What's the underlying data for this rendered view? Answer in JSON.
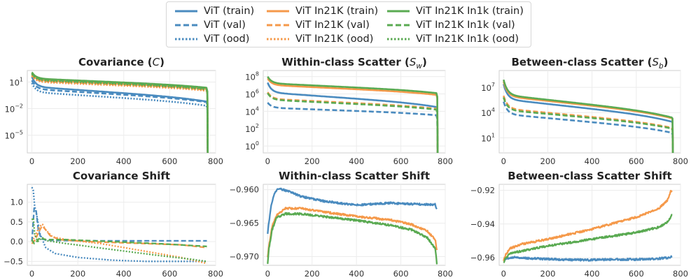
{
  "colors": {
    "vit": "#4a8bbf",
    "in21k": "#f5994a",
    "in1k": "#5aaa52"
  },
  "legend": [
    {
      "label": "ViT (train)",
      "color": "vit",
      "style": "solid"
    },
    {
      "label": "ViT (val)",
      "color": "vit",
      "style": "dashed"
    },
    {
      "label": "ViT (ood)",
      "color": "vit",
      "style": "dotted"
    },
    {
      "label": "ViT In21K (train)",
      "color": "in21k",
      "style": "solid"
    },
    {
      "label": "ViT In21K (val)",
      "color": "in21k",
      "style": "dashed"
    },
    {
      "label": "ViT In21K (ood)",
      "color": "in21k",
      "style": "dotted"
    },
    {
      "label": "ViT In21K In1k (train)",
      "color": "in1k",
      "style": "solid"
    },
    {
      "label": "ViT In21K In1k (val)",
      "color": "in1k",
      "style": "dashed"
    },
    {
      "label": "ViT In21K In1k (ood)",
      "color": "in1k",
      "style": "dotted"
    }
  ],
  "chart_data": [
    {
      "id": "cov",
      "type": "line",
      "title": "Covariance (C)",
      "yscale": "log",
      "xlim": [
        -20,
        800
      ],
      "xticks": [
        0,
        200,
        400,
        600,
        800
      ],
      "ylim_log10": [
        -7,
        2.3
      ],
      "yticks_log10": [
        1,
        -2,
        -5
      ],
      "ytick_labels": [
        "10^1",
        "10^-2",
        "10^-5"
      ],
      "drop_to": -8,
      "series": [
        {
          "name": "ViT (train)",
          "color": "vit",
          "style": "solid",
          "start": 1.6,
          "end": -0.9
        },
        {
          "name": "ViT (val)",
          "color": "vit",
          "style": "dashed",
          "start": 1.2,
          "end": -1.0
        },
        {
          "name": "ViT (ood)",
          "color": "vit",
          "style": "dotted",
          "start": 0.9,
          "end": -1.4
        },
        {
          "name": "ViT In21K (train)",
          "color": "in21k",
          "style": "solid",
          "start": 1.9,
          "end": 0.4
        },
        {
          "name": "ViT In21K (val)",
          "color": "in21k",
          "style": "dashed",
          "start": 1.8,
          "end": 0.3
        },
        {
          "name": "ViT In21K (ood)",
          "color": "in21k",
          "style": "dotted",
          "start": 1.7,
          "end": 0.2
        },
        {
          "name": "ViT In21K In1k (train)",
          "color": "in1k",
          "style": "solid",
          "start": 2.1,
          "end": 0.55
        },
        {
          "name": "ViT In21K In1k (val)",
          "color": "in1k",
          "style": "dashed",
          "start": 2.0,
          "end": 0.45
        },
        {
          "name": "ViT In21K In1k (ood)",
          "color": "in1k",
          "style": "dotted",
          "start": 1.9,
          "end": 0.35
        }
      ]
    },
    {
      "id": "sw",
      "type": "line",
      "title": "Within-class Scatter (S_w)",
      "yscale": "log",
      "xlim": [
        -20,
        800
      ],
      "xticks": [
        0,
        200,
        400,
        600,
        800
      ],
      "ylim_log10": [
        -0.8,
        8.7
      ],
      "yticks_log10": [
        8,
        6,
        4,
        2,
        0
      ],
      "ytick_labels": [
        "10^8",
        "10^6",
        "10^4",
        "10^2",
        "10^0"
      ],
      "drop_to": -1.5,
      "series": [
        {
          "name": "ViT (train)",
          "color": "vit",
          "style": "solid",
          "start": 7.3,
          "end": 4.8
        },
        {
          "name": "ViT (val)",
          "color": "vit",
          "style": "dashed",
          "start": 5.0,
          "end": 3.7
        },
        {
          "name": "ViT In21K (train)",
          "color": "in21k",
          "style": "solid",
          "start": 7.8,
          "end": 6.1
        },
        {
          "name": "ViT In21K (val)",
          "color": "in21k",
          "style": "dashed",
          "start": 6.2,
          "end": 4.5
        },
        {
          "name": "ViT In21K In1k (train)",
          "color": "in1k",
          "style": "solid",
          "start": 8.0,
          "end": 6.3
        },
        {
          "name": "ViT In21K In1k (val)",
          "color": "in1k",
          "style": "dashed",
          "start": 6.1,
          "end": 4.4
        }
      ]
    },
    {
      "id": "sb",
      "type": "line",
      "title": "Between-class Scatter (S_b)",
      "yscale": "log",
      "xlim": [
        -20,
        800
      ],
      "xticks": [
        0,
        200,
        400,
        600,
        800
      ],
      "ylim_log10": [
        -0.8,
        9.0
      ],
      "yticks_log10": [
        7,
        4,
        1
      ],
      "ytick_labels": [
        "10^7",
        "10^4",
        "10^1"
      ],
      "drop_to": -1.5,
      "series": [
        {
          "name": "ViT (train)",
          "color": "vit",
          "style": "solid",
          "start": 7.4,
          "end": 3.4
        },
        {
          "name": "ViT (val)",
          "color": "vit",
          "style": "dashed",
          "start": 5.3,
          "end": 2.0
        },
        {
          "name": "ViT In21K (train)",
          "color": "in21k",
          "style": "solid",
          "start": 7.7,
          "end": 3.8
        },
        {
          "name": "ViT In21K (val)",
          "color": "in21k",
          "style": "dashed",
          "start": 6.0,
          "end": 2.6
        },
        {
          "name": "ViT In21K In1k (train)",
          "color": "in1k",
          "style": "solid",
          "start": 7.9,
          "end": 3.9
        },
        {
          "name": "ViT In21K In1k (val)",
          "color": "in1k",
          "style": "dashed",
          "start": 5.8,
          "end": 2.5
        }
      ]
    },
    {
      "id": "covshift",
      "type": "line",
      "title": "Covariance Shift",
      "yscale": "linear",
      "xlim": [
        -20,
        800
      ],
      "xticks": [
        0,
        200,
        400,
        600,
        800
      ],
      "ylim": [
        -0.6,
        1.45
      ],
      "yticks": [
        1.0,
        0.5,
        0.0,
        -0.5
      ],
      "ytick_labels": [
        "1.0",
        "0.5",
        "0.0",
        "−0.5"
      ],
      "series": [
        {
          "name": "ViT (val)",
          "color": "vit",
          "style": "dashed",
          "points": [
            [
              0,
              0.0
            ],
            [
              10,
              0.85
            ],
            [
              18,
              0.8
            ],
            [
              28,
              0.3
            ],
            [
              40,
              0.08
            ],
            [
              60,
              0.04
            ],
            [
              100,
              0.03
            ],
            [
              300,
              0.02
            ],
            [
              600,
              0.02
            ],
            [
              760,
              0.02
            ]
          ]
        },
        {
          "name": "ViT (ood)",
          "color": "vit",
          "style": "dotted",
          "points": [
            [
              0,
              1.38
            ],
            [
              6,
              1.3
            ],
            [
              12,
              0.9
            ],
            [
              20,
              0.7
            ],
            [
              35,
              0.2
            ],
            [
              60,
              -0.15
            ],
            [
              100,
              -0.3
            ],
            [
              200,
              -0.4
            ],
            [
              350,
              -0.47
            ],
            [
              500,
              -0.5
            ],
            [
              650,
              -0.5
            ],
            [
              760,
              -0.5
            ]
          ]
        },
        {
          "name": "ViT In21K (val)",
          "color": "in21k",
          "style": "dashed",
          "points": [
            [
              0,
              -0.05
            ],
            [
              15,
              0.05
            ],
            [
              30,
              0.25
            ],
            [
              45,
              0.4
            ],
            [
              60,
              0.3
            ],
            [
              80,
              0.15
            ],
            [
              120,
              0.05
            ],
            [
              250,
              0.0
            ],
            [
              500,
              -0.05
            ],
            [
              650,
              -0.08
            ],
            [
              760,
              -0.15
            ]
          ]
        },
        {
          "name": "ViT In21K (ood)",
          "color": "in21k",
          "style": "dotted",
          "points": [
            [
              0,
              0.0
            ],
            [
              15,
              0.15
            ],
            [
              30,
              0.35
            ],
            [
              45,
              0.45
            ],
            [
              60,
              0.3
            ],
            [
              90,
              0.12
            ],
            [
              150,
              0.05
            ],
            [
              300,
              -0.05
            ],
            [
              500,
              -0.25
            ],
            [
              650,
              -0.4
            ],
            [
              760,
              -0.55
            ]
          ]
        },
        {
          "name": "ViT In21K In1k (val)",
          "color": "in1k",
          "style": "dashed",
          "points": [
            [
              0,
              0.05
            ],
            [
              10,
              -0.05
            ],
            [
              20,
              0.0
            ],
            [
              35,
              0.1
            ],
            [
              60,
              0.05
            ],
            [
              150,
              0.05
            ],
            [
              350,
              0.0
            ],
            [
              550,
              -0.05
            ],
            [
              700,
              -0.1
            ],
            [
              760,
              -0.12
            ]
          ]
        },
        {
          "name": "ViT In21K In1k (ood)",
          "color": "in1k",
          "style": "dotted",
          "points": [
            [
              0,
              0.55
            ],
            [
              6,
              0.6
            ],
            [
              12,
              0.2
            ],
            [
              25,
              0.0
            ],
            [
              45,
              0.1
            ],
            [
              70,
              0.02
            ],
            [
              150,
              -0.05
            ],
            [
              350,
              -0.2
            ],
            [
              550,
              -0.35
            ],
            [
              700,
              -0.45
            ],
            [
              760,
              -0.5
            ]
          ]
        }
      ]
    },
    {
      "id": "swshift",
      "type": "line",
      "title": "Within-class Scatter Shift",
      "yscale": "linear",
      "xlim": [
        -20,
        800
      ],
      "xticks": [
        0,
        200,
        400,
        600,
        800
      ],
      "ylim": [
        -0.9713,
        -0.9592
      ],
      "yticks": [
        -0.96,
        -0.965,
        -0.97
      ],
      "ytick_labels": [
        "−0.960",
        "−0.965",
        "−0.970"
      ],
      "series": [
        {
          "name": "ViT",
          "color": "vit",
          "style": "solid",
          "points": [
            [
              0,
              -0.9665
            ],
            [
              5,
              -0.965
            ],
            [
              15,
              -0.9625
            ],
            [
              30,
              -0.9605
            ],
            [
              50,
              -0.9598
            ],
            [
              90,
              -0.9602
            ],
            [
              150,
              -0.961
            ],
            [
              250,
              -0.9617
            ],
            [
              400,
              -0.9623
            ],
            [
              550,
              -0.962
            ],
            [
              700,
              -0.9622
            ],
            [
              755,
              -0.9622
            ],
            [
              762,
              -0.963
            ]
          ]
        },
        {
          "name": "ViT In21K",
          "color": "in21k",
          "style": "solid",
          "points": [
            [
              0,
              -0.97
            ],
            [
              5,
              -0.9685
            ],
            [
              20,
              -0.9655
            ],
            [
              40,
              -0.9638
            ],
            [
              80,
              -0.9628
            ],
            [
              150,
              -0.9628
            ],
            [
              250,
              -0.9633
            ],
            [
              400,
              -0.964
            ],
            [
              550,
              -0.9645
            ],
            [
              650,
              -0.9652
            ],
            [
              720,
              -0.9662
            ],
            [
              755,
              -0.9675
            ],
            [
              762,
              -0.969
            ]
          ]
        },
        {
          "name": "ViT In21K In1k",
          "color": "in1k",
          "style": "solid",
          "points": [
            [
              0,
              -0.971
            ],
            [
              5,
              -0.969
            ],
            [
              20,
              -0.966
            ],
            [
              40,
              -0.9642
            ],
            [
              80,
              -0.9636
            ],
            [
              150,
              -0.9636
            ],
            [
              250,
              -0.964
            ],
            [
              400,
              -0.9646
            ],
            [
              550,
              -0.9653
            ],
            [
              650,
              -0.966
            ],
            [
              720,
              -0.9672
            ],
            [
              755,
              -0.9688
            ],
            [
              762,
              -0.971
            ]
          ]
        }
      ]
    },
    {
      "id": "sbshift",
      "type": "line",
      "title": "Between-class Scatter Shift",
      "yscale": "linear",
      "xlim": [
        -20,
        800
      ],
      "xticks": [
        0,
        200,
        400,
        600,
        800
      ],
      "ylim": [
        -0.9645,
        -0.9165
      ],
      "yticks": [
        -0.92,
        -0.94,
        -0.96
      ],
      "ytick_labels": [
        "−0.92",
        "−0.94",
        "−0.96"
      ],
      "series": [
        {
          "name": "ViT",
          "color": "vit",
          "style": "solid",
          "points": [
            [
              0,
              -0.9615
            ],
            [
              10,
              -0.9605
            ],
            [
              40,
              -0.9598
            ],
            [
              100,
              -0.9602
            ],
            [
              200,
              -0.9608
            ],
            [
              300,
              -0.9612
            ],
            [
              400,
              -0.9613
            ],
            [
              500,
              -0.961
            ],
            [
              600,
              -0.961
            ],
            [
              700,
              -0.9605
            ],
            [
              740,
              -0.96
            ],
            [
              760,
              -0.9595
            ]
          ]
        },
        {
          "name": "ViT In21K",
          "color": "in21k",
          "style": "solid",
          "points": [
            [
              0,
              -0.962
            ],
            [
              10,
              -0.958
            ],
            [
              30,
              -0.9545
            ],
            [
              80,
              -0.952
            ],
            [
              200,
              -0.949
            ],
            [
              300,
              -0.946
            ],
            [
              400,
              -0.943
            ],
            [
              500,
              -0.9395
            ],
            [
              600,
              -0.936
            ],
            [
              700,
              -0.931
            ],
            [
              740,
              -0.926
            ],
            [
              755,
              -0.921
            ],
            [
              762,
              -0.92
            ]
          ]
        },
        {
          "name": "ViT In21K In1k",
          "color": "in1k",
          "style": "solid",
          "points": [
            [
              0,
              -0.963
            ],
            [
              10,
              -0.96
            ],
            [
              30,
              -0.9575
            ],
            [
              80,
              -0.956
            ],
            [
              200,
              -0.953
            ],
            [
              300,
              -0.951
            ],
            [
              400,
              -0.949
            ],
            [
              500,
              -0.947
            ],
            [
              600,
              -0.945
            ],
            [
              700,
              -0.942
            ],
            [
              740,
              -0.939
            ],
            [
              760,
              -0.935
            ]
          ]
        }
      ]
    }
  ]
}
